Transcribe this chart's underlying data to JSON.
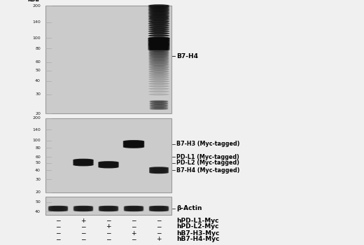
{
  "background_color": "#e8e8e8",
  "gel_bg": "#c8c8c8",
  "gel_bg_light": "#d8d8d8",
  "panel1": {
    "ladder_marks": [
      200,
      140,
      100,
      80,
      60,
      50,
      40,
      30,
      20
    ],
    "kda_min": 20,
    "kda_max": 200,
    "band_label": "B7-H4",
    "band_label_kda": 68
  },
  "panel2": {
    "ladder_marks": [
      200,
      140,
      100,
      80,
      60,
      50,
      40,
      30,
      20
    ],
    "kda_min": 20,
    "kda_max": 200,
    "labels": [
      "B7-H3 (Myc-tagged)",
      "PD-L1 (Myc-tagged)",
      "PD-L2 (Myc-tagged)",
      "B7-H4 (Myc-tagged)"
    ],
    "label_kda": [
      90,
      60,
      50,
      40
    ]
  },
  "panel3": {
    "ladder_marks": [
      50,
      40
    ],
    "kda_min": 37,
    "kda_max": 57,
    "band_label": "β-Actin"
  },
  "lane_labels": [
    [
      "−",
      "+",
      "−",
      "−",
      "−",
      "hPD-L1-Myc"
    ],
    [
      "−",
      "−",
      "+",
      "−",
      "−",
      "hPD-L2-Myc"
    ],
    [
      "−",
      "−",
      "−",
      "+",
      "−",
      "hB7-H3-Myc"
    ],
    [
      "−",
      "−",
      "−",
      "−",
      "+",
      "hB7-H4-Myc"
    ]
  ],
  "colors": {
    "text": "#000000",
    "gel_border": "#999999",
    "marker_line": "#888888",
    "ladder_tick": "#aaaaaa"
  }
}
